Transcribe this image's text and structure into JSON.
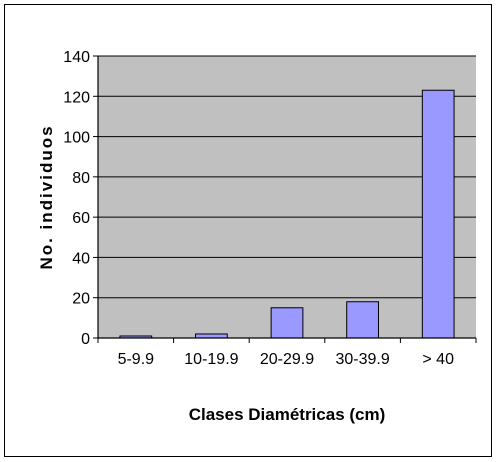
{
  "chart_data": {
    "type": "bar",
    "title": "",
    "xlabel": "Clases Diamétricas (cm)",
    "ylabel": "No. individuos",
    "categories": [
      "5-9.9",
      "10-19.9",
      "20-29.9",
      "30-39.9",
      "> 40"
    ],
    "values": [
      1,
      2,
      15,
      18,
      123
    ],
    "ylim": [
      0,
      140
    ],
    "yticks": [
      "0",
      "20",
      "40",
      "60",
      "80",
      "100",
      "120",
      "140"
    ],
    "grid": true,
    "legend": "none",
    "colors": {
      "plot_background": "#c0c0c0",
      "bar_fill": "#9999ff",
      "bar_stroke": "#000000",
      "grid": "#000000"
    }
  }
}
